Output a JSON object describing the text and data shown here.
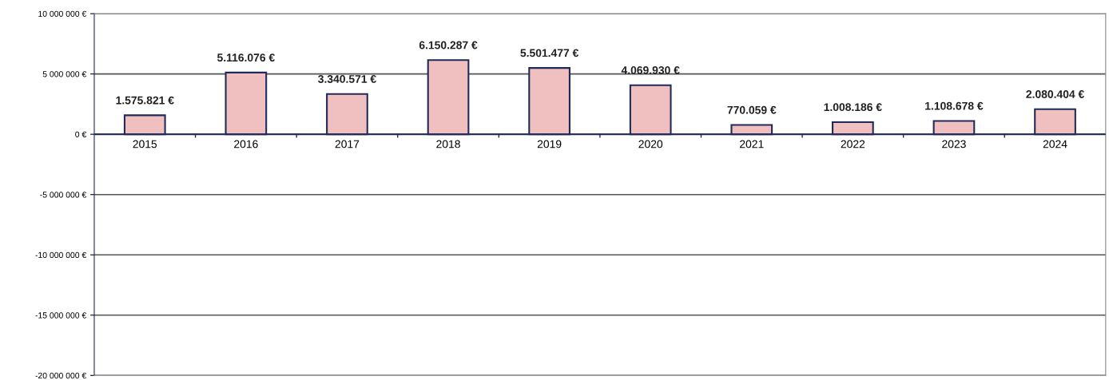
{
  "chart_data": {
    "type": "bar",
    "categories": [
      "2015",
      "2016",
      "2017",
      "2018",
      "2019",
      "2020",
      "2021",
      "2022",
      "2023",
      "2024"
    ],
    "values": [
      1575821,
      5116076,
      3340571,
      6150287,
      5501477,
      4069930,
      770059,
      1008186,
      1108678,
      2080404
    ],
    "value_labels": [
      "1.575.821 €",
      "5.116.076 €",
      "3.340.571 €",
      "6.150.287 €",
      "5.501.477 €",
      "4.069.930 €",
      "770.059 €",
      "1.008.186 €",
      "1.108.678 €",
      "2.080.404 €"
    ],
    "color": "#f0c0c0",
    "ylim": [
      -20000000,
      10000000
    ],
    "yticks": [
      {
        "value": -20000000,
        "label": "-20 000 000 €"
      },
      {
        "value": -15000000,
        "label": "-15 000 000 €"
      },
      {
        "value": -10000000,
        "label": "-10 000 000 €"
      },
      {
        "value": -5000000,
        "label": "-5 000 000 €"
      },
      {
        "value": 0,
        "label": "0 €"
      },
      {
        "value": 5000000,
        "label": "5 000 000 €"
      },
      {
        "value": 10000000,
        "label": "10 000 000 €"
      }
    ],
    "grid": "y",
    "legend": false
  }
}
